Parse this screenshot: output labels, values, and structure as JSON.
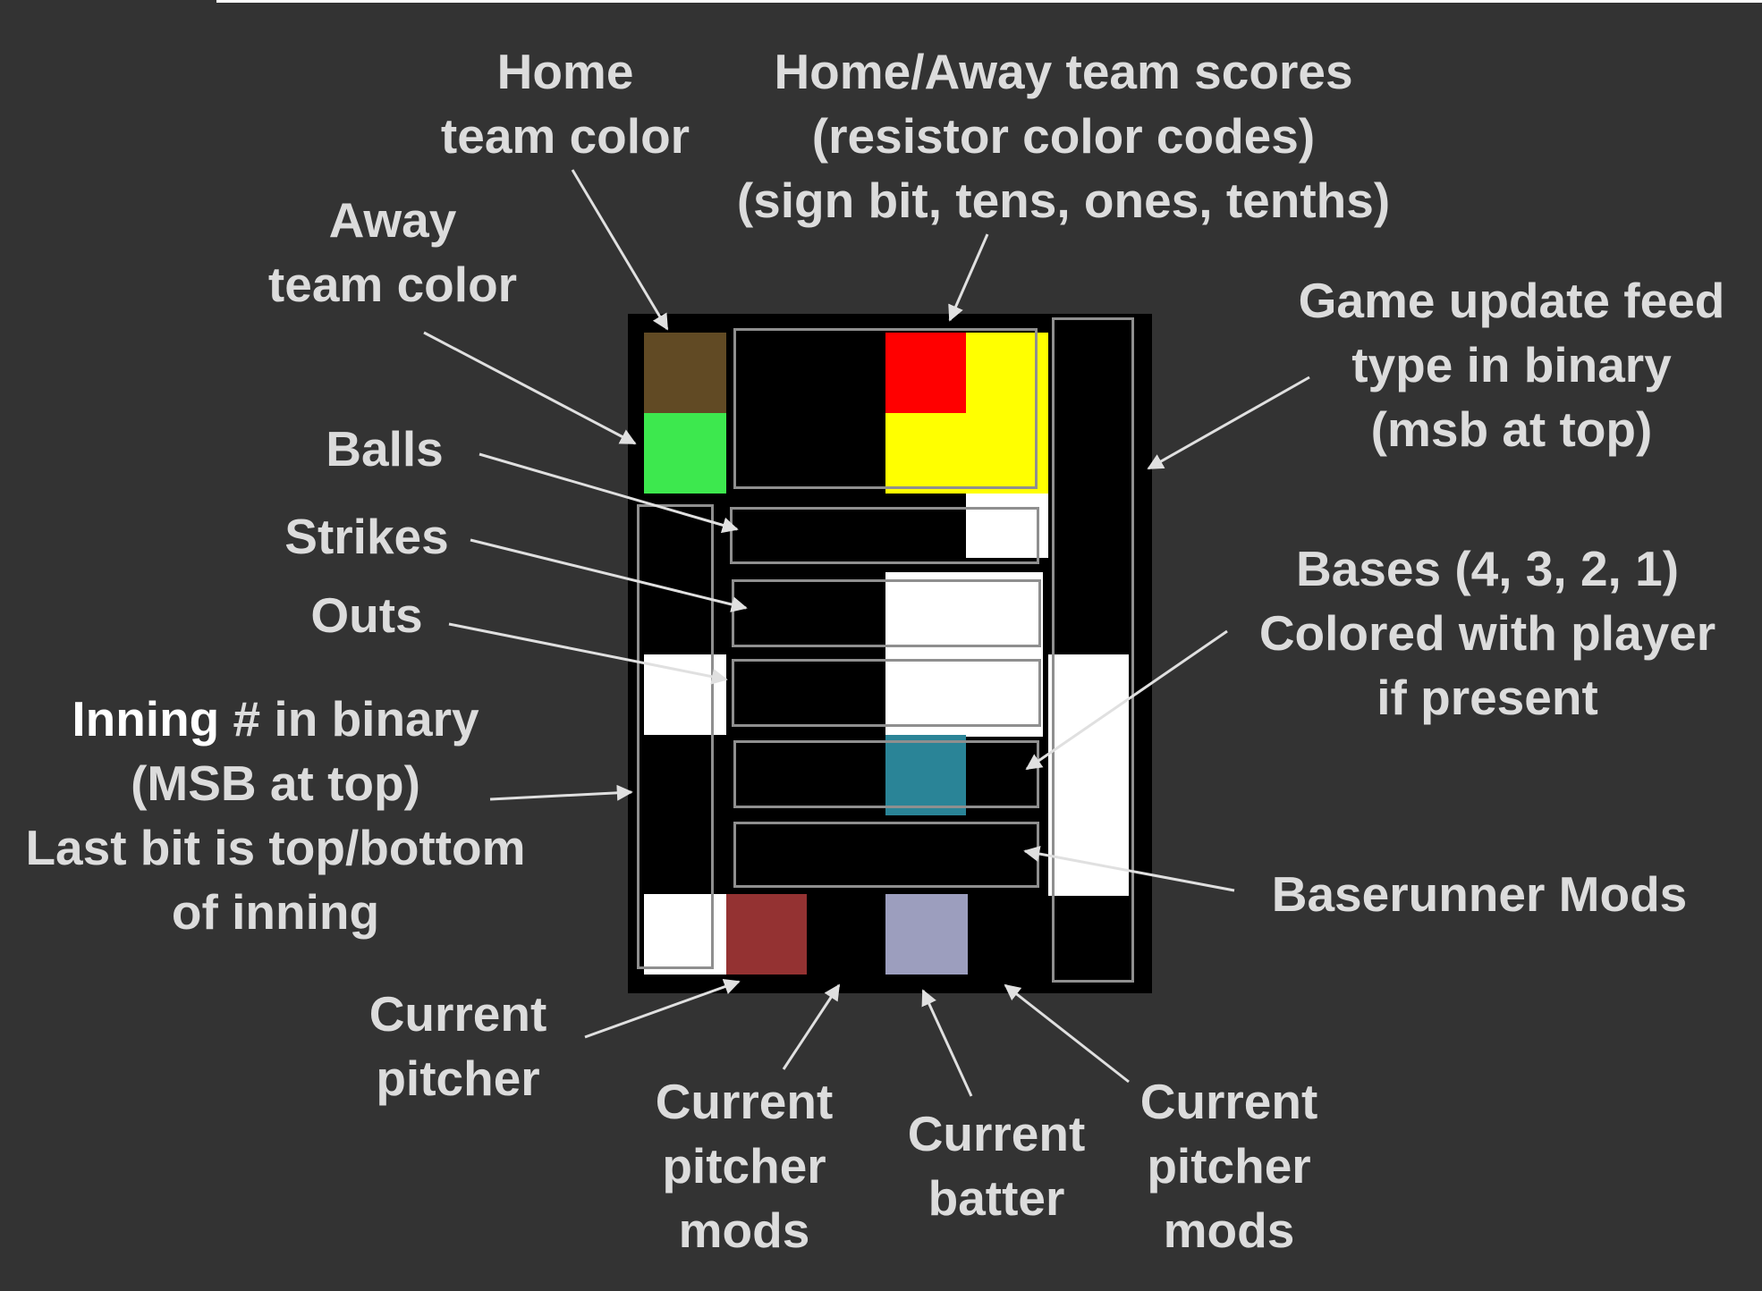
{
  "colors": {
    "background": "#333333",
    "board": "#000000",
    "home_team": "#614a24",
    "away_team": "#3de84e",
    "score_red": "#ff0000",
    "score_yellow": "#ffff00",
    "lit": "#ffffff",
    "base_player": "#2a8497",
    "pitcher": "#943232",
    "batter": "#9c9ebe",
    "frame": "#8f8f8f",
    "label": "#dcdcdc"
  },
  "labels": {
    "home_team_color": "Home\nteam color",
    "away_team_color": "Away\nteam color",
    "scores": "Home/Away team scores\n(resistor color codes)\n(sign bit, tens, ones, tenths)",
    "game_update_feed": "Game update feed\ntype in binary\n(msb at top)",
    "balls": "Balls",
    "strikes": "Strikes",
    "outs": "Outs",
    "inning_bold": "Inning",
    "inning_rest": " # in binary\n(MSB at top)\nLast bit is top/bottom\nof inning",
    "bases": "Bases (4, 3, 2, 1)\nColored with player\nif present",
    "baserunner_mods": "Baserunner Mods",
    "current_pitcher": "Current\npitcher",
    "current_pitcher_mods_1": "Current\npitcher\nmods",
    "current_batter": "Current\nbatter",
    "current_pitcher_mods_2": "Current\npitcher\nmods"
  }
}
